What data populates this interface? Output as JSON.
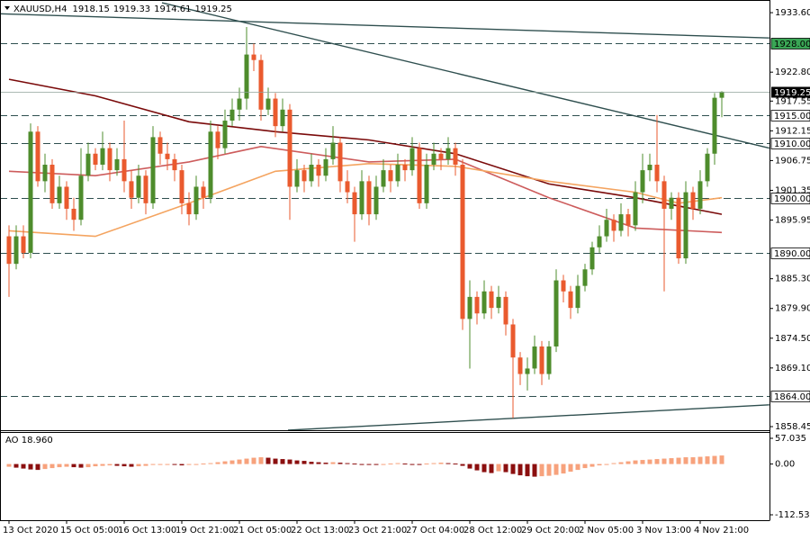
{
  "chart_data": {
    "type": "candlestick",
    "title": "XAUUSD,H4",
    "categories": [
      "13 Oct 2020",
      null,
      null,
      null,
      null,
      null,
      null,
      null,
      "15 Oct 05:00",
      null,
      null,
      null,
      null,
      null,
      null,
      null,
      "16 Oct 13:00",
      null,
      null,
      null,
      null,
      null,
      null,
      null,
      "19 Oct 21:00",
      null,
      null,
      null,
      null,
      null,
      null,
      null,
      "21 Oct 05:00",
      null,
      null,
      null,
      null,
      null,
      null,
      null,
      "22 Oct 13:00",
      null,
      null,
      null,
      null,
      null,
      null,
      null,
      "23 Oct 21:00",
      null,
      null,
      null,
      null,
      null,
      null,
      null,
      "27 Oct 04:00",
      null,
      null,
      null,
      null,
      null,
      null,
      null,
      "28 Oct 12:00",
      null,
      null,
      null,
      null,
      null,
      null,
      null,
      "29 Oct 20:00",
      null,
      null,
      null,
      null,
      null,
      null,
      null,
      "2 Nov 05:00",
      null,
      null,
      null,
      null,
      null,
      null,
      null,
      "3 Nov 13:00",
      null,
      null,
      null,
      null,
      null,
      null,
      null,
      "4 Nov 21:00",
      null,
      null,
      null
    ],
    "candles": {
      "up_color": "#4e8c2c",
      "down_color": "#ea5a2e",
      "open": [
        1893,
        1888,
        1893,
        1890,
        1912,
        1903,
        1906,
        1899,
        1902,
        1898,
        1896,
        1904,
        1908,
        1906,
        1909,
        1905,
        1907,
        1903,
        1900,
        1904,
        1899,
        1911,
        1908,
        1907,
        1905,
        1899,
        1897,
        1902,
        1900,
        1912,
        1909,
        1914,
        1916,
        1918,
        1926,
        1925,
        1916,
        1918,
        1913,
        1916,
        1902,
        1905,
        1903,
        1906,
        1904,
        1907,
        1910,
        1903,
        1901,
        1897,
        1903,
        1897,
        1902,
        1905,
        1903,
        1906,
        1905,
        1909,
        1899,
        1906,
        1908,
        1907,
        1909,
        1906,
        1878,
        1882,
        1879,
        1883,
        1880,
        1882,
        1877,
        1871,
        1868,
        1869,
        1873,
        1868,
        1873,
        1885,
        1883,
        1880,
        1884,
        1887,
        1891,
        1893,
        1896,
        1894,
        1897,
        1895,
        1901,
        1905,
        1906,
        1903,
        1898,
        1900,
        1889,
        1901,
        1898,
        1903,
        1908,
        1918.15
      ],
      "high": [
        1895,
        1895,
        1895,
        1913.5,
        1913,
        1908,
        1907,
        1904,
        1903,
        1900,
        1909,
        1910,
        1909,
        1912,
        1910,
        1909,
        1914,
        1905,
        1906,
        1905,
        1913,
        1912,
        1910,
        1908,
        1906,
        1901,
        1904,
        1903,
        1914,
        1913,
        1916,
        1918,
        1920,
        1931,
        1928,
        1926,
        1920,
        1919,
        1918,
        1917,
        1907,
        1906,
        1908,
        1907,
        1909,
        1913,
        1911,
        1905,
        1902,
        1905,
        1904,
        1904,
        1907,
        1906,
        1908,
        1907,
        1911,
        1910,
        1908,
        1910,
        1909,
        1911,
        1910,
        1907,
        1885,
        1883,
        1885,
        1884,
        1884,
        1883,
        1878,
        1872,
        1871,
        1875,
        1874,
        1874,
        1887,
        1886,
        1884,
        1886,
        1888,
        1892,
        1895,
        1898,
        1897,
        1899,
        1898,
        1903,
        1908,
        1908,
        1915,
        1904,
        1901,
        1901,
        1903,
        1902,
        1905,
        1909,
        1919,
        1919.33
      ],
      "low": [
        1882,
        1887,
        1889,
        1889,
        1902,
        1901,
        1898,
        1898,
        1896,
        1894,
        1895,
        1903,
        1905,
        1905,
        1903,
        1904,
        1901,
        1898,
        1899,
        1897,
        1898,
        1906,
        1905,
        1903,
        1897,
        1895,
        1896,
        1898,
        1899,
        1907,
        1908,
        1913,
        1914,
        1916,
        1923,
        1914,
        1915,
        1911,
        1912,
        1896,
        1901,
        1901,
        1902,
        1902,
        1903,
        1906,
        1901,
        1899,
        1892,
        1896,
        1895,
        1896,
        1901,
        1901,
        1902,
        1903,
        1904,
        1898,
        1898,
        1905,
        1905,
        1906,
        1904,
        1876,
        1869,
        1877,
        1878,
        1878,
        1879,
        1875,
        1860,
        1866,
        1865,
        1868,
        1866,
        1867,
        1872,
        1881,
        1878,
        1879,
        1883,
        1886,
        1890,
        1892,
        1892,
        1893,
        1893,
        1894,
        1899,
        1903,
        1901,
        1883,
        1896,
        1888,
        1888,
        1896,
        1897,
        1902,
        1906,
        1914.61
      ],
      "close": [
        1888,
        1893,
        1890,
        1912,
        1903,
        1906,
        1899,
        1902,
        1898,
        1896,
        1904,
        1908,
        1906,
        1909,
        1905,
        1907,
        1903,
        1900,
        1904,
        1899,
        1911,
        1908,
        1907,
        1905,
        1899,
        1897,
        1902,
        1900,
        1912,
        1909,
        1914,
        1916,
        1918,
        1926,
        1925,
        1916,
        1918,
        1913,
        1916,
        1902,
        1905,
        1903,
        1906,
        1904,
        1907,
        1910,
        1903,
        1901,
        1897,
        1903,
        1897,
        1902,
        1905,
        1903,
        1906,
        1905,
        1909,
        1899,
        1906,
        1908,
        1907,
        1909,
        1906,
        1878,
        1882,
        1879,
        1883,
        1880,
        1882,
        1877,
        1871,
        1868,
        1869,
        1873,
        1868,
        1873,
        1885,
        1883,
        1880,
        1884,
        1887,
        1891,
        1893,
        1896,
        1894,
        1897,
        1895,
        1901,
        1905,
        1906,
        1903,
        1898,
        1900,
        1889,
        1901,
        1898,
        1903,
        1908,
        1918.15,
        1919.25
      ]
    },
    "moving_averages": [
      {
        "color": "#7a0a0a",
        "x": [
          0,
          12,
          25,
          37,
          50,
          62,
          75,
          87,
          99
        ],
        "values": [
          1921.5,
          1918.5,
          1913.8,
          1912,
          1910.5,
          1908,
          1902.5,
          1900,
          1897
        ]
      },
      {
        "color": "#cd5c5c",
        "x": [
          0,
          12,
          25,
          35,
          50,
          62,
          75,
          87,
          99
        ],
        "values": [
          1904.8,
          1904,
          1906.5,
          1909.3,
          1906.5,
          1907,
          1900,
          1894.5,
          1893.7
        ]
      },
      {
        "color": "#f4a460",
        "x": [
          0,
          12,
          25,
          37,
          50,
          62,
          75,
          87,
          93,
          99
        ],
        "values": [
          1894,
          1893,
          1899,
          1904.8,
          1906.2,
          1905.7,
          1903,
          1901,
          1899,
          1900
        ]
      }
    ],
    "trendlines": [
      {
        "color": "#2f4f4f",
        "x": [
          -1.25,
          105.6
        ],
        "values": [
          1933.4,
          1929
        ]
      },
      {
        "color": "#2f4f4f",
        "x": [
          21.25,
          105.6
        ],
        "values": [
          1935.4,
          1909
        ]
      },
      {
        "color": "#2f4f4f",
        "x": [
          38.75,
          105.6
        ],
        "values": [
          1857.8,
          1862.4
        ]
      }
    ],
    "levels": [
      {
        "value": 1928,
        "label": "1928.00",
        "color": "#3aa655"
      },
      {
        "value": 1915,
        "label": "1915.00",
        "color": "#ffffff"
      },
      {
        "value": 1910,
        "label": "1910.00",
        "color": "#ffffff"
      },
      {
        "value": 1900,
        "label": "1900.00",
        "color": "#ffffff"
      },
      {
        "value": 1890,
        "label": "1890.00",
        "color": "#ffffff"
      },
      {
        "value": 1864,
        "label": "1864.00",
        "color": "#ffffff"
      }
    ],
    "level_line_color": "#2f4f4f",
    "current_price_color": "#000000",
    "ylim": [
      1857.8,
      1935.9
    ],
    "yticks": [
      {
        "value": 1933.6,
        "label": "1933.60"
      },
      {
        "value": 1922.8,
        "label": "1922.80"
      },
      {
        "value": 1917.55,
        "label": "1917.55"
      },
      {
        "value": 1912.15,
        "label": "1912.15"
      },
      {
        "value": 1906.75,
        "label": "1906.75"
      },
      {
        "value": 1901.35,
        "label": "1901.35"
      },
      {
        "value": 1895.95,
        "label": "1895.95"
      },
      {
        "value": 1885.3,
        "label": "1885.30"
      },
      {
        "value": 1879.9,
        "label": "1879.90"
      },
      {
        "value": 1874.5,
        "label": "1874.50"
      },
      {
        "value": 1869.1,
        "label": "1869.10"
      },
      {
        "value": 1858.45,
        "label": "1858.45"
      }
    ],
    "indicator": {
      "type": "bar",
      "title": "AO 18.960",
      "up_color": "#f7a27c",
      "down_color": "#8b0f0f",
      "values": [
        -6,
        -8,
        -10,
        -12,
        -13,
        -11,
        -9,
        -7,
        -6,
        -7,
        -8,
        -7,
        -5,
        -4,
        -3,
        -4,
        -5,
        -6,
        -5,
        -4,
        -2,
        -1,
        -1,
        -2,
        -3,
        -2,
        -1,
        1,
        2,
        4,
        6,
        8,
        10,
        12,
        14,
        15,
        14,
        12,
        11,
        10,
        8,
        7,
        5,
        4,
        3,
        4,
        3,
        2,
        1,
        0,
        -1,
        -2,
        -1,
        1,
        2,
        1,
        0,
        -1,
        1,
        2,
        3,
        2,
        1,
        -4,
        -10,
        -14,
        -18,
        -20,
        -16,
        -18,
        -22,
        -25,
        -27,
        -28,
        -27,
        -26,
        -24,
        -21,
        -17,
        -13,
        -9,
        -6,
        -3,
        -1,
        2,
        4,
        6,
        8,
        9,
        10,
        11,
        12,
        13,
        14,
        15,
        15,
        16,
        17,
        18,
        18.96
      ],
      "ylim": [
        -124.5,
        71
      ],
      "yticks": [
        {
          "value": 57.035,
          "label": "57.035"
        },
        {
          "value": 0,
          "label": "0.00"
        },
        {
          "value": -112.53,
          "label": "-112.53"
        }
      ]
    }
  }
}
